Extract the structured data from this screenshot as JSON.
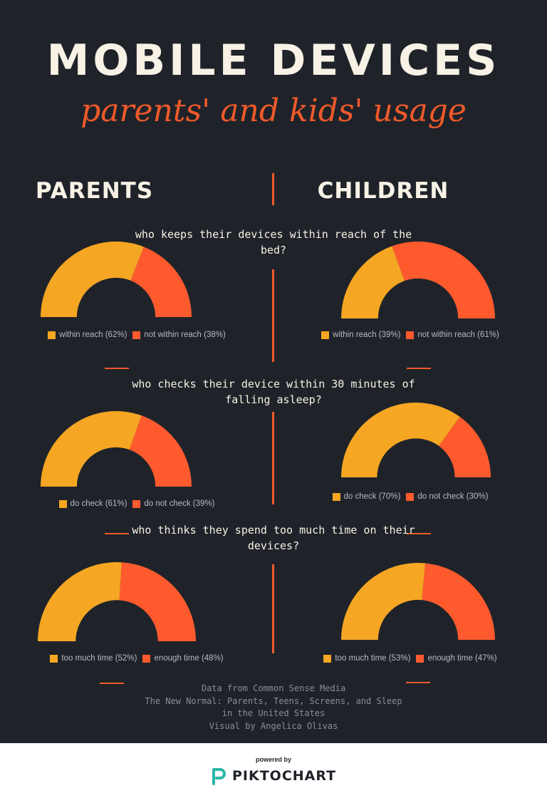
{
  "header": {
    "title": "MOBILE DEVICES",
    "subtitle": "parents' and kids' usage"
  },
  "columns": {
    "left": "PARENTS",
    "right": "CHILDREN"
  },
  "colors": {
    "background": "#1f2329",
    "primary": "#f5a623",
    "secondary": "#ff5a2e",
    "accent": "#f05a2a",
    "text": "#f7f1e6"
  },
  "questions": [
    "who keeps their devices within reach of the bed?",
    "who checks their device within 30 minutes of falling asleep?",
    "who thinks they spend too much time on their devices?"
  ],
  "chart_data": [
    {
      "type": "pie",
      "group": "PARENTS",
      "question": "who keeps their devices within reach of the bed?",
      "slices": [
        {
          "label": "within reach (62%)",
          "value": 62
        },
        {
          "label": "not within reach (38%)",
          "value": 38
        }
      ]
    },
    {
      "type": "pie",
      "group": "CHILDREN",
      "question": "who keeps their devices within reach of the bed?",
      "slices": [
        {
          "label": "within reach (39%)",
          "value": 39
        },
        {
          "label": "not within reach (61%)",
          "value": 61
        }
      ]
    },
    {
      "type": "pie",
      "group": "PARENTS",
      "question": "who checks their device within 30 minutes of falling asleep?",
      "slices": [
        {
          "label": "do check (61%)",
          "value": 61
        },
        {
          "label": "do not check (39%)",
          "value": 39
        }
      ]
    },
    {
      "type": "pie",
      "group": "CHILDREN",
      "question": "who checks their device within 30 minutes of falling asleep?",
      "slices": [
        {
          "label": "do check (70%)",
          "value": 70
        },
        {
          "label": "do not check (30%)",
          "value": 30
        }
      ]
    },
    {
      "type": "pie",
      "group": "PARENTS",
      "question": "who thinks they spend too much time on their devices?",
      "slices": [
        {
          "label": "too much time (52%)",
          "value": 52
        },
        {
          "label": "enough time (48%)",
          "value": 48
        }
      ]
    },
    {
      "type": "pie",
      "group": "CHILDREN",
      "question": "who thinks they spend too much time on their devices?",
      "slices": [
        {
          "label": "too much time (53%)",
          "value": 53
        },
        {
          "label": "enough time (47%)",
          "value": 47
        }
      ]
    }
  ],
  "credits": [
    "Data from Common Sense Media",
    "The New Normal: Parents, Teens, Screens, and Sleep",
    "in the United States",
    "Visual by Angelica Olivas"
  ],
  "footer": {
    "powered_by": "powered by",
    "brand": "PIKTOCHART"
  }
}
